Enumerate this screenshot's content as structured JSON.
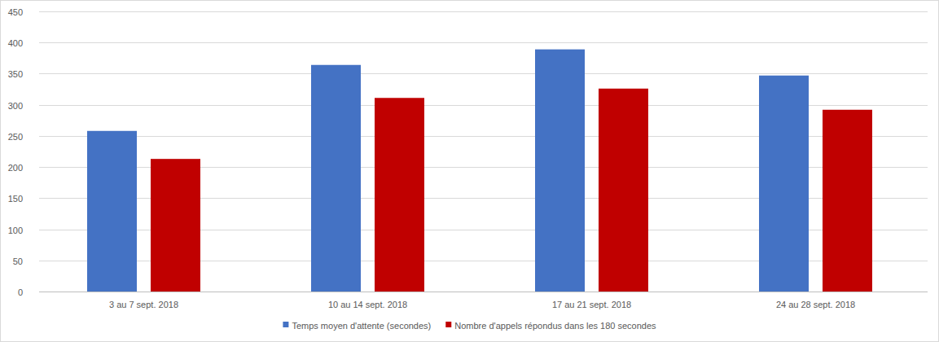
{
  "chart_data": {
    "type": "bar",
    "categories": [
      "3 au 7 sept. 2018",
      "10 au 14 sept. 2018",
      "17 au 21 sept. 2018",
      "24 au 28 sept. 2018"
    ],
    "series": [
      {
        "name": "Temps moyen d'attente (secondes)",
        "color": "#4472c4",
        "values": [
          258,
          364,
          389,
          347
        ]
      },
      {
        "name": "Nombre d'appels répondus dans les 180 secondes",
        "color": "#c00000",
        "values": [
          213,
          311,
          326,
          292
        ]
      }
    ],
    "ylim": [
      0,
      450
    ],
    "yticks": [
      0,
      50,
      100,
      150,
      200,
      250,
      300,
      350,
      400,
      450
    ],
    "grid": true,
    "legend": "bottom"
  }
}
